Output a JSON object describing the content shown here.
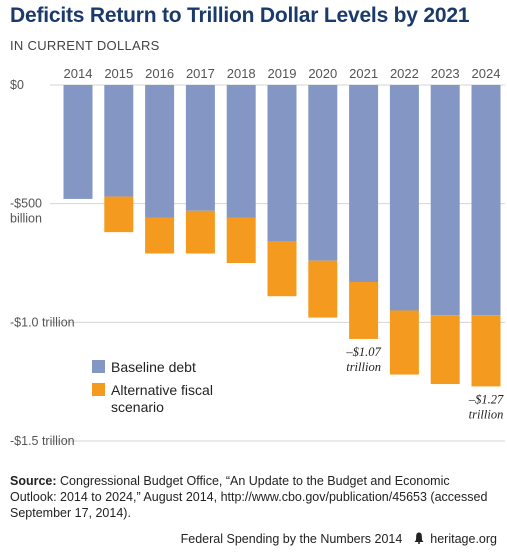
{
  "chart_data": {
    "type": "bar",
    "stacked": true,
    "title": "Deficits Return to Trillion Dollar Levels by 2021",
    "subtitle": "IN CURRENT DOLLARS",
    "categories": [
      "2014",
      "2015",
      "2016",
      "2017",
      "2018",
      "2019",
      "2020",
      "2021",
      "2022",
      "2023",
      "2024"
    ],
    "series": [
      {
        "name": "Baseline debt",
        "color": "#8497c4",
        "values": [
          -0.48,
          -0.47,
          -0.56,
          -0.53,
          -0.56,
          -0.66,
          -0.74,
          -0.83,
          -0.95,
          -0.97,
          -0.97
        ]
      },
      {
        "name": "Alternative fiscal scenario",
        "color": "#f39a1f",
        "values": [
          0,
          -0.15,
          -0.15,
          -0.18,
          -0.19,
          -0.23,
          -0.24,
          -0.24,
          -0.27,
          -0.29,
          -0.3
        ]
      }
    ],
    "ylim": [
      -1.5,
      0
    ],
    "yticks": [
      {
        "value": 0,
        "label": "$0"
      },
      {
        "value": -0.5,
        "label": "-$500\nbillion"
      },
      {
        "value": -1.0,
        "label": "-$1.0 trillion"
      },
      {
        "value": -1.5,
        "label": "-$1.5 trillion"
      }
    ],
    "annotations": [
      {
        "category": "2021",
        "text": "–$1.07\ntrillion"
      },
      {
        "category": "2024",
        "text": "–$1.27\ntrillion"
      }
    ],
    "legend": "lower-left",
    "grid": true
  },
  "source_label": "Source:",
  "source_text": " Congressional Budget Office, “An Update to the Budget and Economic Outlook: 2014 to 2024,” August 2014, http://www.cbo.gov/publication/45653 (accessed September 17, 2014).",
  "footer_left": "Federal Spending by the Numbers 2014",
  "footer_right": "heritage.org",
  "bell_icon": "liberty-bell-icon"
}
